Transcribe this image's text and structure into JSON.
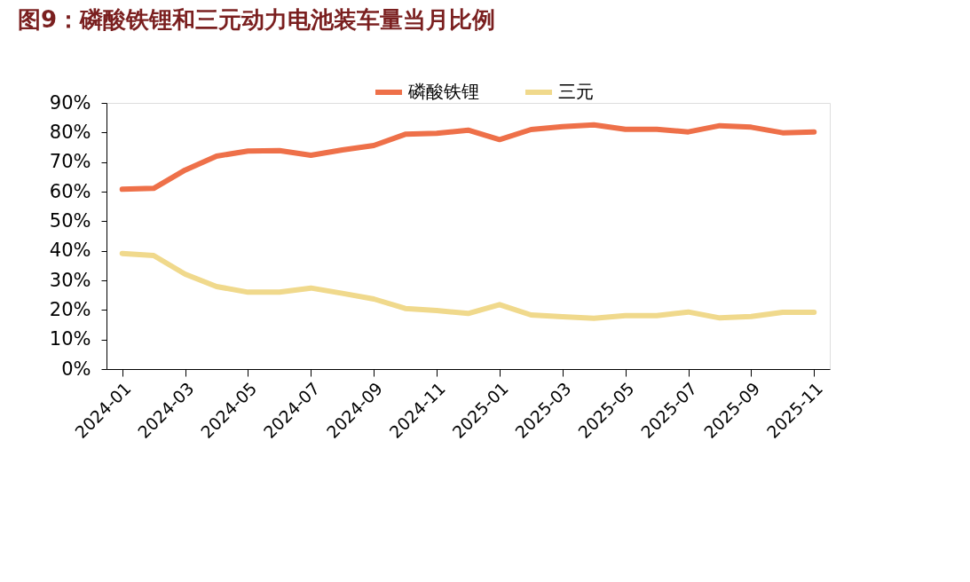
{
  "chart_data": {
    "type": "line",
    "title": "图9：磷酸铁锂和三元动力电池装车量当月比例",
    "categories": [
      "2024-01",
      null,
      "2024-03",
      null,
      "2024-05",
      null,
      "2024-07",
      null,
      "2024-09",
      null,
      "2024-11",
      null,
      "2025-01",
      null,
      "2025-03",
      null,
      "2025-05",
      null,
      "2025-07",
      null,
      "2025-09",
      null,
      "2025-11"
    ],
    "series": [
      {
        "name": "磷酸铁锂",
        "color": "#ee7049",
        "values": [
          60.8,
          61.1,
          67.3,
          72.0,
          73.7,
          73.9,
          72.3,
          74.1,
          75.6,
          79.4,
          79.7,
          80.8,
          77.6,
          81.0,
          82.0,
          82.6,
          81.1,
          81.1,
          80.2,
          82.3,
          81.8,
          79.9,
          80.2
        ]
      },
      {
        "name": "三元",
        "color": "#f0d98c",
        "values": [
          39.1,
          38.4,
          32.1,
          27.9,
          26.0,
          26.0,
          27.4,
          25.6,
          23.7,
          20.5,
          19.8,
          18.8,
          21.8,
          18.3,
          17.7,
          17.2,
          18.1,
          18.1,
          19.3,
          17.3,
          17.8,
          19.2,
          19.2
        ]
      }
    ],
    "ylim": [
      0,
      90
    ],
    "yticks": [
      {
        "value": 0,
        "label": "0%"
      },
      {
        "value": 10,
        "label": "10%"
      },
      {
        "value": 20,
        "label": "20%"
      },
      {
        "value": 30,
        "label": "30%"
      },
      {
        "value": 40,
        "label": "40%"
      },
      {
        "value": 50,
        "label": "50%"
      },
      {
        "value": 60,
        "label": "60%"
      },
      {
        "value": 70,
        "label": "70%"
      },
      {
        "value": 80,
        "label": "80%"
      },
      {
        "value": 90,
        "label": "90%"
      }
    ],
    "grid": false,
    "legend": "top",
    "marker": "none",
    "line_style": "solid"
  }
}
